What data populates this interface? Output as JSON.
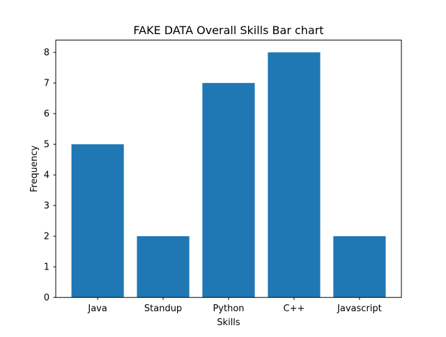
{
  "chart_data": {
    "type": "bar",
    "title": "FAKE DATA Overall Skills Bar chart",
    "xlabel": "Skills",
    "ylabel": "Frequency",
    "categories": [
      "Java",
      "Standup",
      "Python",
      "C++",
      "Javascript"
    ],
    "values": [
      5,
      2,
      7,
      8,
      2
    ],
    "ylim": [
      0,
      8.4
    ],
    "yticks": [
      0,
      1,
      2,
      3,
      4,
      5,
      6,
      7,
      8
    ],
    "grid": false,
    "bar_color": "#1f77b4"
  }
}
